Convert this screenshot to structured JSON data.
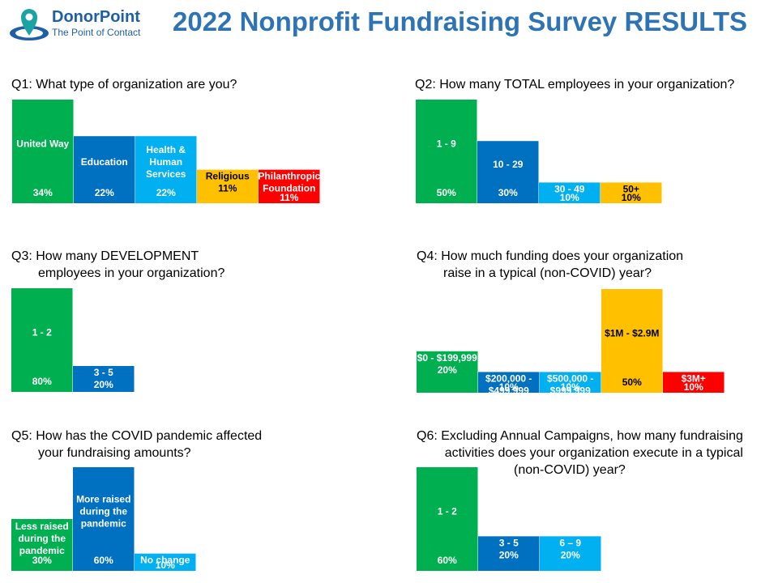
{
  "header": {
    "logo_name": "DonorPoint",
    "logo_tagline": "The Point of Contact",
    "title": "2022 Nonprofit Fundraising Survey RESULTS"
  },
  "colors": {
    "green": "#00b050",
    "darkblue": "#0070c0",
    "lightblue": "#00b0f0",
    "gold": "#ffc000",
    "red": "#ff0000",
    "title_blue": "#2e74b5"
  },
  "questions": [
    {
      "id": "q1",
      "lines": [
        "Q1: What type of organization are you?"
      ]
    },
    {
      "id": "q2",
      "lines": [
        "Q2: How many TOTAL employees in your organization?"
      ]
    },
    {
      "id": "q3",
      "lines": [
        "Q3: How many DEVELOPMENT",
        "employees in your organization?"
      ]
    },
    {
      "id": "q4",
      "lines": [
        "Q4: How much funding does your organization",
        "raise in a typical (non-COVID) year?"
      ]
    },
    {
      "id": "q5",
      "lines": [
        "Q5: How has the COVID pandemic affected",
        "your fundraising amounts?"
      ]
    },
    {
      "id": "q6",
      "lines": [
        "Q6: Excluding Annual Campaigns, how many fundraising",
        "activities does your organization execute in a typical",
        "(non-COVID) year?"
      ]
    }
  ],
  "chart_data": [
    {
      "type": "bar",
      "question": "q1",
      "categories": [
        "United Way",
        "Education",
        "Health & Human Services",
        "Religious",
        "Philanthropic Foundation"
      ],
      "values": [
        34,
        22,
        22,
        11,
        11
      ],
      "unit": "%",
      "colors": [
        "#00b050",
        "#0070c0",
        "#00b0f0",
        "#ffc000",
        "#ff0000"
      ]
    },
    {
      "type": "bar",
      "question": "q2",
      "categories": [
        "1 - 9",
        "10 - 29",
        "30 - 49",
        "50+"
      ],
      "values": [
        50,
        30,
        10,
        10
      ],
      "unit": "%",
      "colors": [
        "#00b050",
        "#0070c0",
        "#00b0f0",
        "#ffc000"
      ]
    },
    {
      "type": "bar",
      "question": "q3",
      "categories": [
        "1 - 2",
        "3 - 5"
      ],
      "values": [
        80,
        20
      ],
      "unit": "%",
      "colors": [
        "#00b050",
        "#0070c0"
      ]
    },
    {
      "type": "bar",
      "question": "q4",
      "categories": [
        "$0 - $199,999",
        "$200,000 - $499,999",
        "$500,000 - $999,999",
        "$1M - $2.9M",
        "$3M+"
      ],
      "values": [
        20,
        10,
        10,
        50,
        10
      ],
      "unit": "%",
      "colors": [
        "#00b050",
        "#0070c0",
        "#00b0f0",
        "#ffc000",
        "#ff0000"
      ]
    },
    {
      "type": "bar",
      "question": "q5",
      "categories": [
        "Less raised during the pandemic",
        "More raised during the pandemic",
        "No change"
      ],
      "values": [
        30,
        60,
        10
      ],
      "unit": "%",
      "colors": [
        "#00b050",
        "#0070c0",
        "#00b0f0"
      ]
    },
    {
      "type": "bar",
      "question": "q6",
      "categories": [
        "1 - 2",
        "3 - 5",
        "6 – 9"
      ],
      "values": [
        60,
        20,
        20
      ],
      "unit": "%",
      "colors": [
        "#00b050",
        "#0070c0",
        "#00b0f0"
      ]
    }
  ]
}
